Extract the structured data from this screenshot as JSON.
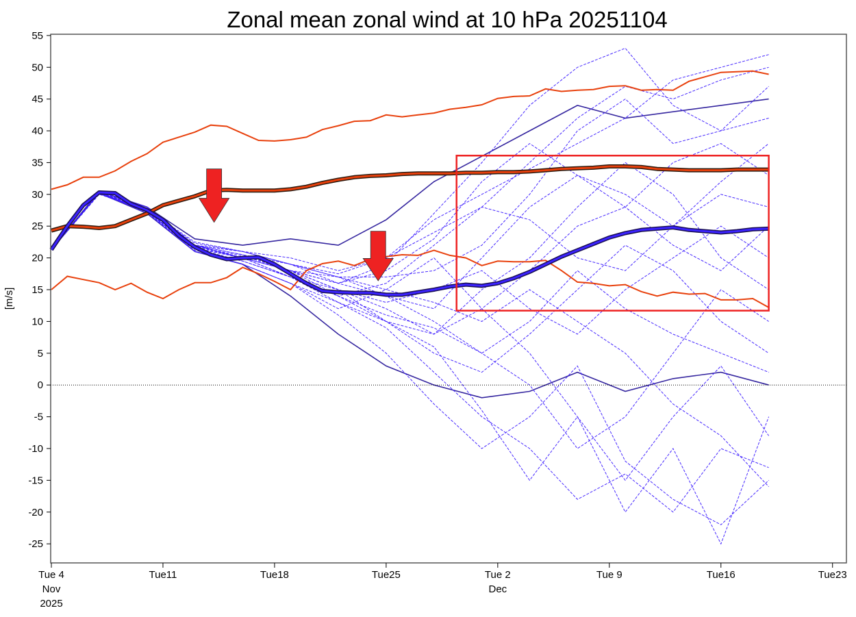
{
  "chart_data": {
    "type": "line",
    "title": "Zonal mean zonal wind at 10 hPa 20251104",
    "xlabel": "",
    "ylabel": "[m/s]",
    "xlim": [
      "2025-11-04",
      "2025-12-24"
    ],
    "ylim": [
      -28,
      55.2
    ],
    "grid": false,
    "yticks": [
      55,
      50,
      45,
      40,
      35,
      30,
      25,
      20,
      15,
      10,
      5,
      0,
      -5,
      -10,
      -15,
      -20,
      -25
    ],
    "xticks": [
      {
        "date": "2025-11-04",
        "lines": [
          "Tue 4",
          "Nov",
          "2025"
        ]
      },
      {
        "date": "2025-11-11",
        "lines": [
          "Tue11"
        ]
      },
      {
        "date": "2025-11-18",
        "lines": [
          "Tue18"
        ]
      },
      {
        "date": "2025-11-25",
        "lines": [
          "Tue25"
        ]
      },
      {
        "date": "2025-12-02",
        "lines": [
          "Tue 2",
          "Dec"
        ]
      },
      {
        "date": "2025-12-09",
        "lines": [
          "Tue 9"
        ]
      },
      {
        "date": "2025-12-16",
        "lines": [
          "Tue16"
        ]
      },
      {
        "date": "2025-12-23",
        "lines": [
          "Tue23"
        ]
      }
    ],
    "zero_line": {
      "value": 0,
      "style": "dotted"
    },
    "colors": {
      "members": "#3c1cff",
      "member_solid": "#2a1a9a",
      "mean_fill": "#3b22ff",
      "mean_edge": "#1a1050",
      "clim": "#e8400c",
      "clim_edge": "#2a1a10",
      "box": "#ee2222",
      "arrow": "#ee2222"
    },
    "x_daily": [
      "2025-11-04",
      "2025-11-05",
      "2025-11-06",
      "2025-11-07",
      "2025-11-08",
      "2025-11-09",
      "2025-11-10",
      "2025-11-11",
      "2025-11-12",
      "2025-11-13",
      "2025-11-14",
      "2025-11-15",
      "2025-11-16",
      "2025-11-17",
      "2025-11-18",
      "2025-11-19",
      "2025-11-20",
      "2025-11-21",
      "2025-11-22",
      "2025-11-23",
      "2025-11-24",
      "2025-11-25",
      "2025-11-26",
      "2025-11-27",
      "2025-11-28",
      "2025-11-29",
      "2025-11-30",
      "2025-12-01",
      "2025-12-02",
      "2025-12-03",
      "2025-12-04",
      "2025-12-05",
      "2025-12-06",
      "2025-12-07",
      "2025-12-08",
      "2025-12-09",
      "2025-12-10",
      "2025-12-11",
      "2025-12-12",
      "2025-12-13",
      "2025-12-14",
      "2025-12-15",
      "2025-12-16",
      "2025-12-17",
      "2025-12-18",
      "2025-12-19"
    ],
    "x_members": [
      "2025-11-04",
      "2025-11-07",
      "2025-11-10",
      "2025-11-13",
      "2025-11-16",
      "2025-11-19",
      "2025-11-22",
      "2025-11-25",
      "2025-11-28",
      "2025-12-01",
      "2025-12-04",
      "2025-12-07",
      "2025-12-10",
      "2025-12-13",
      "2025-12-16",
      "2025-12-19"
    ],
    "series": [
      {
        "role": "climatology-max",
        "values": [
          30.8,
          31.5,
          32.7,
          32.7,
          33.7,
          35.2,
          36.4,
          38.2,
          39,
          39.8,
          40.9,
          40.7,
          39.6,
          38.5,
          38.4,
          38.6,
          39,
          40.2,
          40.8,
          41.5,
          41.6,
          42.5,
          42.2,
          42.5,
          42.8,
          43.4,
          43.7,
          44.1,
          45.1,
          45.4,
          45.5,
          46.6,
          46.2,
          46.4,
          46.5,
          47,
          47.1,
          46.4,
          46.5,
          46.4,
          47.8,
          48.5,
          49.2,
          49.3,
          49.4,
          48.9
        ]
      },
      {
        "role": "climatology-min",
        "values": [
          15,
          17.1,
          16.6,
          16.1,
          15,
          16,
          14.6,
          13.6,
          15,
          16.1,
          16.1,
          16.9,
          18.5,
          17.5,
          16.3,
          15,
          18,
          19.1,
          19.5,
          18.8,
          19.8,
          20.2,
          20.5,
          20.4,
          21.2,
          20.4,
          20,
          18.8,
          19.5,
          19.4,
          19.4,
          19.6,
          18,
          16.2,
          16,
          15.6,
          15.8,
          14.7,
          14,
          14.6,
          14.3,
          14.4,
          13.4,
          13.4,
          13.6,
          12.2
        ]
      },
      {
        "role": "climatology-mean",
        "values": [
          24.3,
          25,
          24.9,
          24.7,
          25,
          26,
          27,
          28.3,
          29,
          29.7,
          30.6,
          30.7,
          30.6,
          30.6,
          30.6,
          30.8,
          31.2,
          31.8,
          32.3,
          32.7,
          32.9,
          33,
          33.2,
          33.3,
          33.3,
          33.3,
          33.4,
          33.4,
          33.5,
          33.5,
          33.6,
          33.8,
          34,
          34.1,
          34.2,
          34.4,
          34.4,
          34.3,
          34,
          33.9,
          33.8,
          33.8,
          33.8,
          33.9,
          33.9,
          33.9
        ]
      },
      {
        "role": "ensemble-mean",
        "values": [
          21.3,
          25,
          28.3,
          30.3,
          30.2,
          28.5,
          27.5,
          26,
          23.5,
          21.7,
          20.5,
          19.8,
          20,
          20.1,
          19,
          17.5,
          16,
          14.8,
          14.6,
          14.5,
          14.5,
          14.2,
          14.2,
          14.6,
          15,
          15.5,
          15.8,
          15.6,
          16,
          16.8,
          17.8,
          19,
          20.2,
          21.2,
          22.2,
          23.2,
          23.9,
          24.4,
          24.6,
          24.8,
          24.4,
          24.2,
          24,
          24.2,
          24.5,
          24.6
        ]
      }
    ],
    "members": [
      {
        "style": "solid",
        "values": [
          21.3,
          30.5,
          28,
          23,
          22,
          23,
          22,
          26,
          32,
          36,
          40,
          44,
          42,
          43,
          44,
          45
        ]
      },
      {
        "style": "solid",
        "values": [
          21.3,
          30.2,
          27,
          21,
          19,
          14,
          8,
          3,
          0,
          -2,
          -1,
          2,
          -1,
          1,
          2,
          0
        ]
      },
      {
        "style": "dashed",
        "values": [
          21.3,
          30,
          27.5,
          22,
          21,
          20,
          18,
          20,
          26,
          30,
          34,
          38,
          42,
          48,
          50,
          52
        ]
      },
      {
        "style": "dashed",
        "values": [
          21.3,
          30.4,
          27,
          21,
          19,
          16,
          11,
          5,
          -3,
          -10,
          -5,
          3,
          -12,
          -18,
          -22,
          -15
        ]
      },
      {
        "style": "dashed",
        "values": [
          21.3,
          30.2,
          28,
          22,
          20,
          18,
          15,
          10,
          5,
          2,
          8,
          15,
          22,
          18,
          10,
          5
        ]
      },
      {
        "style": "dashed",
        "values": [
          21.3,
          30.1,
          27.6,
          22.5,
          21,
          19,
          17,
          14,
          12,
          20,
          28,
          33,
          30,
          25,
          32,
          38
        ]
      },
      {
        "style": "dashed",
        "values": [
          21.3,
          30.3,
          27.2,
          21.5,
          20,
          17,
          13,
          10,
          6,
          -4,
          -15,
          -5,
          -20,
          -10,
          -25,
          -5
        ]
      },
      {
        "style": "dashed",
        "values": [
          21.3,
          30.5,
          28,
          22,
          21,
          19,
          16,
          19,
          27,
          35,
          44,
          50,
          53,
          44,
          40,
          47
        ]
      },
      {
        "style": "dashed",
        "values": [
          21.3,
          30.2,
          27.5,
          21,
          19,
          16,
          12,
          15,
          20,
          12,
          5,
          -5,
          -15,
          -5,
          3,
          -8
        ]
      },
      {
        "style": "dashed",
        "values": [
          21.3,
          30.3,
          27.8,
          22,
          20.5,
          18,
          14,
          16,
          22,
          28,
          26,
          20,
          18,
          25,
          30,
          28
        ]
      },
      {
        "style": "dashed",
        "values": [
          21.3,
          30.1,
          27.3,
          21.2,
          19.5,
          17,
          15,
          12,
          8,
          15,
          20,
          28,
          35,
          30,
          20,
          15
        ]
      },
      {
        "style": "dashed",
        "values": [
          21.3,
          30.4,
          27.7,
          22,
          20,
          18,
          16,
          14,
          10,
          5,
          0,
          -10,
          -5,
          5,
          15,
          10
        ]
      },
      {
        "style": "dashed",
        "values": [
          21.3,
          30.2,
          27.5,
          21.8,
          20,
          18,
          17,
          17,
          18,
          22,
          30,
          40,
          45,
          38,
          40,
          42
        ]
      },
      {
        "style": "dashed",
        "values": [
          21.3,
          30.3,
          27.6,
          22.3,
          21,
          19,
          17,
          15,
          13,
          10,
          15,
          10,
          5,
          -3,
          -8,
          -16
        ]
      },
      {
        "style": "dashed",
        "values": [
          21.3,
          30.2,
          27.4,
          21.6,
          20,
          17,
          14,
          10,
          8,
          12,
          18,
          25,
          28,
          35,
          38,
          33
        ]
      },
      {
        "style": "dashed",
        "values": [
          21.3,
          30.4,
          27.8,
          22,
          20,
          18,
          16,
          18,
          23,
          32,
          38,
          33,
          28,
          22,
          18,
          25
        ]
      },
      {
        "style": "dashed",
        "values": [
          21.3,
          30.1,
          27.2,
          21,
          19,
          16,
          13,
          9,
          2,
          -5,
          -10,
          -18,
          -14,
          -20,
          -10,
          -13
        ]
      },
      {
        "style": "dashed",
        "values": [
          21.3,
          30.3,
          27.5,
          21.8,
          20.3,
          18,
          15,
          13,
          15,
          18,
          12,
          8,
          15,
          20,
          25,
          20
        ]
      },
      {
        "style": "dashed",
        "values": [
          21.3,
          30.2,
          27.6,
          22,
          20.5,
          19,
          17.5,
          20,
          24,
          28,
          35,
          42,
          47,
          45,
          48,
          50
        ]
      },
      {
        "style": "dashed",
        "values": [
          21.3,
          30.3,
          27.4,
          21.5,
          19.5,
          17,
          14,
          11,
          9,
          5,
          10,
          18,
          12,
          8,
          5,
          2
        ]
      }
    ],
    "annotations": {
      "box": {
        "x": [
          "2025-11-29T10:00",
          "2025-12-19"
        ],
        "y": [
          11.7,
          36.1
        ]
      },
      "arrows": [
        {
          "date": "2025-11-14T05:00",
          "from": 34,
          "to": 25.6
        },
        {
          "date": "2025-11-24T12:00",
          "from": 24.2,
          "to": 16.4
        }
      ]
    }
  }
}
